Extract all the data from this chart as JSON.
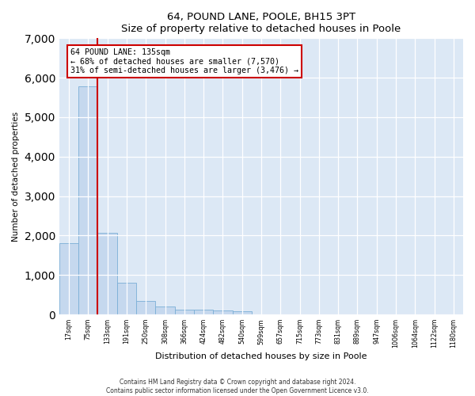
{
  "title1": "64, POUND LANE, POOLE, BH15 3PT",
  "title2": "Size of property relative to detached houses in Poole",
  "xlabel": "Distribution of detached houses by size in Poole",
  "ylabel": "Number of detached properties",
  "bar_color": "#c5d8ee",
  "bar_edge_color": "#7aaed6",
  "background_color": "#dce8f5",
  "grid_color": "#ffffff",
  "vline_color": "#cc0000",
  "annotation_text_line1": "64 POUND LANE: 135sqm",
  "annotation_text_line2": "← 68% of detached houses are smaller (7,570)",
  "annotation_text_line3": "31% of semi-detached houses are larger (3,476) →",
  "footer1": "Contains HM Land Registry data © Crown copyright and database right 2024.",
  "footer2": "Contains public sector information licensed under the Open Government Licence v3.0.",
  "categories": [
    "17sqm",
    "75sqm",
    "133sqm",
    "191sqm",
    "250sqm",
    "308sqm",
    "366sqm",
    "424sqm",
    "482sqm",
    "540sqm",
    "599sqm",
    "657sqm",
    "715sqm",
    "773sqm",
    "831sqm",
    "889sqm",
    "947sqm",
    "1006sqm",
    "1064sqm",
    "1122sqm",
    "1180sqm"
  ],
  "values": [
    1800,
    5780,
    2060,
    800,
    340,
    200,
    130,
    120,
    100,
    80,
    0,
    0,
    0,
    0,
    0,
    0,
    0,
    0,
    0,
    0,
    0
  ],
  "vline_x": 1.5,
  "ylim_max": 7000,
  "yticks": [
    0,
    1000,
    2000,
    3000,
    4000,
    5000,
    6000,
    7000
  ]
}
